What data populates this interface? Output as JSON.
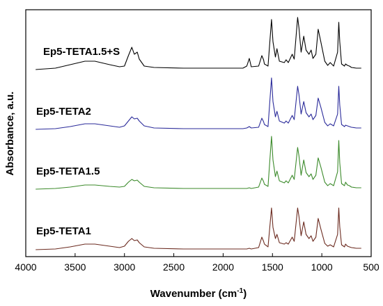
{
  "chart_data": {
    "type": "line",
    "xlabel_main": "Wavenumber (cm",
    "xlabel_sup": "-1",
    "xlabel_end": ")",
    "ylabel": "Absorbance, a.u.",
    "xlim": [
      4000,
      500
    ],
    "xticks": [
      4000,
      3500,
      3000,
      2500,
      2000,
      1500,
      1000,
      500
    ],
    "xtick_labels": [
      "4000",
      "3500",
      "3000",
      "2500",
      "2000",
      "1500",
      "1000",
      "500"
    ],
    "series": [
      {
        "name": "Ep5-TETA1.5+S",
        "color": "#000000",
        "offset": 3,
        "points": [
          [
            3900,
            0.0
          ],
          [
            3700,
            0.02
          ],
          [
            3550,
            0.07
          ],
          [
            3400,
            0.12
          ],
          [
            3300,
            0.12
          ],
          [
            3150,
            0.07
          ],
          [
            3050,
            0.04
          ],
          [
            3000,
            0.05
          ],
          [
            2960,
            0.2
          ],
          [
            2925,
            0.32
          ],
          [
            2900,
            0.22
          ],
          [
            2870,
            0.25
          ],
          [
            2850,
            0.15
          ],
          [
            2800,
            0.05
          ],
          [
            2700,
            0.03
          ],
          [
            2400,
            0.02
          ],
          [
            2000,
            0.02
          ],
          [
            1800,
            0.02
          ],
          [
            1760,
            0.05
          ],
          [
            1735,
            0.16
          ],
          [
            1715,
            0.04
          ],
          [
            1640,
            0.05
          ],
          [
            1608,
            0.2
          ],
          [
            1590,
            0.14
          ],
          [
            1582,
            0.08
          ],
          [
            1545,
            0.05
          ],
          [
            1510,
            0.72
          ],
          [
            1495,
            0.4
          ],
          [
            1470,
            0.18
          ],
          [
            1455,
            0.3
          ],
          [
            1430,
            0.12
          ],
          [
            1380,
            0.1
          ],
          [
            1362,
            0.14
          ],
          [
            1340,
            0.1
          ],
          [
            1300,
            0.22
          ],
          [
            1280,
            0.15
          ],
          [
            1245,
            0.75
          ],
          [
            1232,
            0.6
          ],
          [
            1210,
            0.25
          ],
          [
            1183,
            0.48
          ],
          [
            1160,
            0.28
          ],
          [
            1130,
            0.22
          ],
          [
            1108,
            0.28
          ],
          [
            1090,
            0.16
          ],
          [
            1060,
            0.22
          ],
          [
            1037,
            0.58
          ],
          [
            1010,
            0.4
          ],
          [
            970,
            0.12
          ],
          [
            940,
            0.06
          ],
          [
            915,
            0.1
          ],
          [
            880,
            0.05
          ],
          [
            840,
            0.25
          ],
          [
            828,
            0.68
          ],
          [
            818,
            0.4
          ],
          [
            800,
            0.08
          ],
          [
            770,
            0.05
          ],
          [
            760,
            0.08
          ],
          [
            740,
            0.06
          ],
          [
            720,
            0.05
          ],
          [
            700,
            0.03
          ],
          [
            650,
            0.02
          ],
          [
            600,
            0.02
          ]
        ]
      },
      {
        "name": "Ep5-TETA2",
        "color": "#2a2a9a",
        "offset": 2,
        "points": [
          [
            3900,
            0.0
          ],
          [
            3700,
            0.01
          ],
          [
            3550,
            0.04
          ],
          [
            3400,
            0.08
          ],
          [
            3300,
            0.08
          ],
          [
            3150,
            0.05
          ],
          [
            3050,
            0.03
          ],
          [
            3000,
            0.05
          ],
          [
            2960,
            0.12
          ],
          [
            2925,
            0.18
          ],
          [
            2900,
            0.15
          ],
          [
            2870,
            0.16
          ],
          [
            2850,
            0.12
          ],
          [
            2800,
            0.05
          ],
          [
            2700,
            0.02
          ],
          [
            2400,
            0.01
          ],
          [
            2000,
            0.01
          ],
          [
            1800,
            0.01
          ],
          [
            1760,
            0.02
          ],
          [
            1735,
            0.04
          ],
          [
            1715,
            0.02
          ],
          [
            1640,
            0.03
          ],
          [
            1608,
            0.16
          ],
          [
            1590,
            0.11
          ],
          [
            1582,
            0.07
          ],
          [
            1545,
            0.04
          ],
          [
            1510,
            0.74
          ],
          [
            1495,
            0.4
          ],
          [
            1470,
            0.18
          ],
          [
            1455,
            0.26
          ],
          [
            1430,
            0.12
          ],
          [
            1380,
            0.09
          ],
          [
            1362,
            0.12
          ],
          [
            1340,
            0.09
          ],
          [
            1300,
            0.2
          ],
          [
            1280,
            0.14
          ],
          [
            1245,
            0.62
          ],
          [
            1232,
            0.5
          ],
          [
            1210,
            0.22
          ],
          [
            1183,
            0.4
          ],
          [
            1160,
            0.24
          ],
          [
            1130,
            0.18
          ],
          [
            1108,
            0.22
          ],
          [
            1090,
            0.14
          ],
          [
            1060,
            0.2
          ],
          [
            1037,
            0.45
          ],
          [
            1010,
            0.32
          ],
          [
            970,
            0.1
          ],
          [
            940,
            0.05
          ],
          [
            915,
            0.08
          ],
          [
            880,
            0.05
          ],
          [
            840,
            0.22
          ],
          [
            828,
            0.62
          ],
          [
            818,
            0.35
          ],
          [
            800,
            0.07
          ],
          [
            770,
            0.04
          ],
          [
            760,
            0.06
          ],
          [
            740,
            0.05
          ],
          [
            720,
            0.04
          ],
          [
            700,
            0.03
          ],
          [
            650,
            0.02
          ],
          [
            600,
            0.02
          ]
        ]
      },
      {
        "name": "Ep5-TETA1.5",
        "color": "#3b8a2a",
        "offset": 1,
        "points": [
          [
            3900,
            0.0
          ],
          [
            3700,
            0.01
          ],
          [
            3550,
            0.03
          ],
          [
            3400,
            0.06
          ],
          [
            3300,
            0.06
          ],
          [
            3150,
            0.04
          ],
          [
            3050,
            0.03
          ],
          [
            3000,
            0.04
          ],
          [
            2960,
            0.1
          ],
          [
            2925,
            0.14
          ],
          [
            2900,
            0.12
          ],
          [
            2870,
            0.13
          ],
          [
            2850,
            0.1
          ],
          [
            2800,
            0.04
          ],
          [
            2700,
            0.02
          ],
          [
            2400,
            0.01
          ],
          [
            2000,
            0.01
          ],
          [
            1800,
            0.01
          ],
          [
            1760,
            0.01
          ],
          [
            1735,
            0.02
          ],
          [
            1715,
            0.01
          ],
          [
            1640,
            0.03
          ],
          [
            1608,
            0.16
          ],
          [
            1590,
            0.11
          ],
          [
            1582,
            0.07
          ],
          [
            1545,
            0.04
          ],
          [
            1510,
            0.76
          ],
          [
            1495,
            0.42
          ],
          [
            1470,
            0.18
          ],
          [
            1455,
            0.26
          ],
          [
            1430,
            0.12
          ],
          [
            1380,
            0.09
          ],
          [
            1362,
            0.12
          ],
          [
            1340,
            0.09
          ],
          [
            1300,
            0.2
          ],
          [
            1280,
            0.14
          ],
          [
            1245,
            0.6
          ],
          [
            1232,
            0.48
          ],
          [
            1210,
            0.2
          ],
          [
            1183,
            0.42
          ],
          [
            1160,
            0.24
          ],
          [
            1130,
            0.18
          ],
          [
            1108,
            0.22
          ],
          [
            1090,
            0.14
          ],
          [
            1060,
            0.2
          ],
          [
            1037,
            0.45
          ],
          [
            1010,
            0.32
          ],
          [
            970,
            0.1
          ],
          [
            940,
            0.05
          ],
          [
            915,
            0.08
          ],
          [
            880,
            0.05
          ],
          [
            840,
            0.25
          ],
          [
            828,
            0.7
          ],
          [
            818,
            0.38
          ],
          [
            800,
            0.08
          ],
          [
            770,
            0.05
          ],
          [
            760,
            0.1
          ],
          [
            740,
            0.06
          ],
          [
            720,
            0.05
          ],
          [
            700,
            0.03
          ],
          [
            650,
            0.02
          ],
          [
            600,
            0.02
          ]
        ]
      },
      {
        "name": "Ep5-TETA1",
        "color": "#6b2a1f",
        "offset": 0,
        "points": [
          [
            3900,
            0.0
          ],
          [
            3700,
            0.01
          ],
          [
            3550,
            0.04
          ],
          [
            3400,
            0.08
          ],
          [
            3300,
            0.08
          ],
          [
            3150,
            0.05
          ],
          [
            3050,
            0.03
          ],
          [
            3000,
            0.05
          ],
          [
            2960,
            0.12
          ],
          [
            2925,
            0.16
          ],
          [
            2900,
            0.13
          ],
          [
            2870,
            0.14
          ],
          [
            2850,
            0.1
          ],
          [
            2800,
            0.04
          ],
          [
            2700,
            0.02
          ],
          [
            2400,
            0.01
          ],
          [
            2000,
            0.01
          ],
          [
            1800,
            0.01
          ],
          [
            1760,
            0.01
          ],
          [
            1735,
            0.02
          ],
          [
            1715,
            0.01
          ],
          [
            1640,
            0.03
          ],
          [
            1608,
            0.18
          ],
          [
            1590,
            0.12
          ],
          [
            1582,
            0.08
          ],
          [
            1545,
            0.04
          ],
          [
            1510,
            0.6
          ],
          [
            1495,
            0.32
          ],
          [
            1470,
            0.16
          ],
          [
            1455,
            0.22
          ],
          [
            1430,
            0.1
          ],
          [
            1380,
            0.08
          ],
          [
            1362,
            0.1
          ],
          [
            1340,
            0.08
          ],
          [
            1300,
            0.18
          ],
          [
            1280,
            0.12
          ],
          [
            1245,
            0.6
          ],
          [
            1232,
            0.48
          ],
          [
            1210,
            0.2
          ],
          [
            1183,
            0.4
          ],
          [
            1160,
            0.22
          ],
          [
            1130,
            0.16
          ],
          [
            1108,
            0.2
          ],
          [
            1090,
            0.12
          ],
          [
            1060,
            0.18
          ],
          [
            1037,
            0.45
          ],
          [
            1010,
            0.3
          ],
          [
            970,
            0.09
          ],
          [
            940,
            0.05
          ],
          [
            915,
            0.07
          ],
          [
            880,
            0.04
          ],
          [
            840,
            0.22
          ],
          [
            828,
            0.6
          ],
          [
            818,
            0.33
          ],
          [
            800,
            0.07
          ],
          [
            770,
            0.04
          ],
          [
            760,
            0.08
          ],
          [
            740,
            0.05
          ],
          [
            720,
            0.04
          ],
          [
            700,
            0.03
          ],
          [
            650,
            0.02
          ],
          [
            600,
            0.02
          ]
        ]
      }
    ]
  }
}
